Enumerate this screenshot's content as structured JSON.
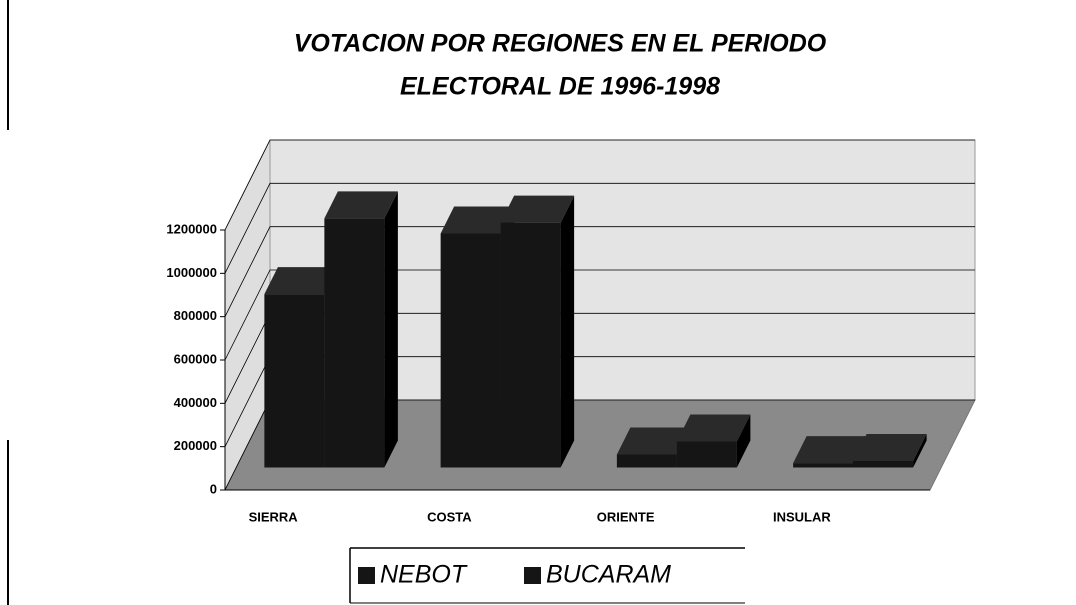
{
  "chart_data": {
    "type": "bar3d",
    "title": "VOTACION POR REGIONES EN EL PERIODO",
    "subtitle": "ELECTORAL DE 1996-1998",
    "categories": [
      "SIERRA",
      "COSTA",
      "ORIENTE",
      "INSULAR"
    ],
    "series": [
      {
        "name": "NEBOT",
        "color": "#151515",
        "values": [
          800000,
          1080000,
          60000,
          20000
        ]
      },
      {
        "name": "BUCARAM",
        "color": "#151515",
        "values": [
          1150000,
          1130000,
          120000,
          30000
        ]
      }
    ],
    "ylim": [
      0,
      1200000
    ],
    "yticks": [
      0,
      200000,
      400000,
      600000,
      800000,
      1000000,
      1200000
    ],
    "grid": true
  }
}
